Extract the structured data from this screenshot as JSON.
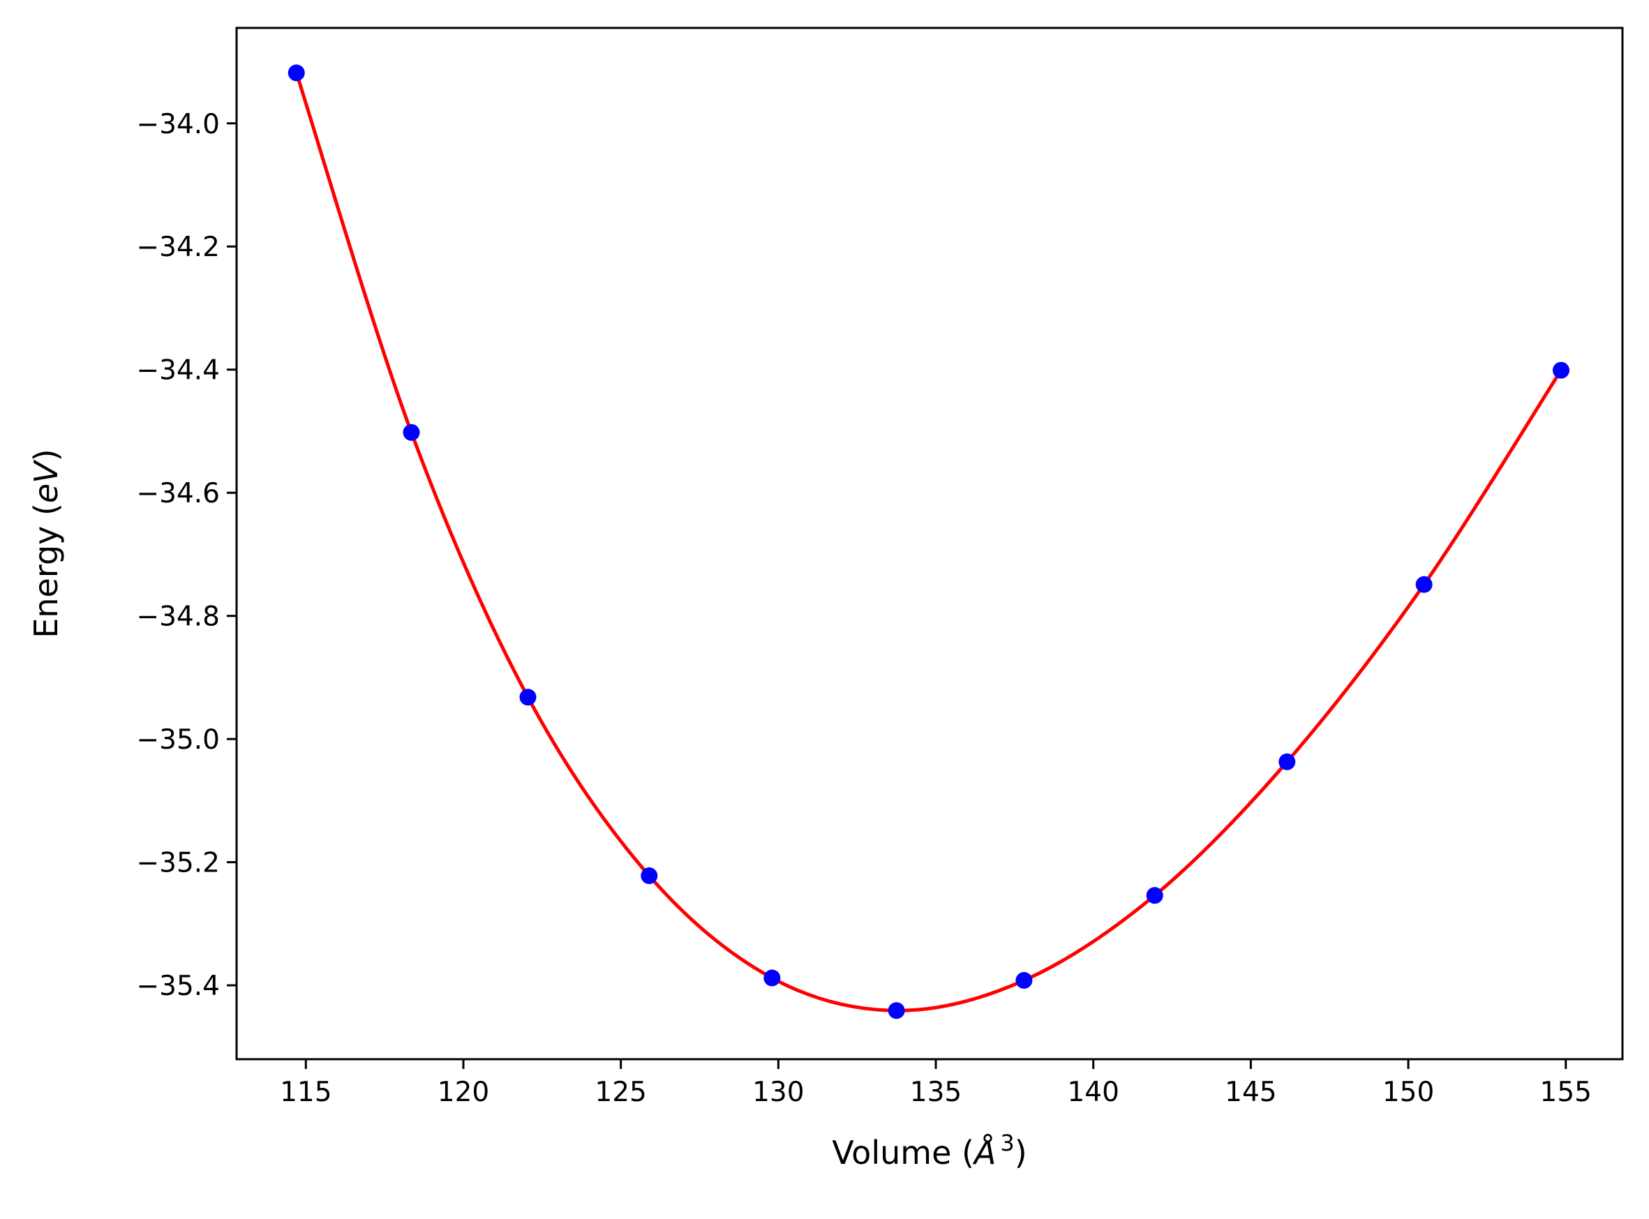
{
  "chart_data": {
    "type": "scatter",
    "title": "",
    "xlabel_text": "Volume (",
    "xlabel_symbol": "Å",
    "xlabel_exponent": "3",
    "xlabel_close": ")",
    "ylabel_text": "Energy (",
    "ylabel_symbol": "eV",
    "ylabel_close": ")",
    "xlim": [
      112.8,
      156.8
    ],
    "ylim": [
      -35.52,
      -33.845
    ],
    "x_ticks": [
      115,
      120,
      125,
      130,
      135,
      140,
      145,
      150,
      155
    ],
    "y_ticks": [
      -34.0,
      -34.2,
      -34.4,
      -34.6,
      -34.8,
      -35.0,
      -35.2,
      -35.4
    ],
    "x_tick_labels": [
      "115",
      "120",
      "125",
      "130",
      "135",
      "140",
      "145",
      "150",
      "155"
    ],
    "y_tick_labels": [
      "−34.0",
      "−34.2",
      "−34.4",
      "−34.6",
      "−34.8",
      "−35.0",
      "−35.2",
      "−35.4"
    ],
    "grid": false,
    "series": [
      {
        "type": "scatter",
        "color": "#0000ff",
        "x": [
          114.7,
          118.35,
          122.05,
          125.9,
          129.8,
          133.75,
          137.8,
          141.95,
          146.15,
          150.5,
          154.85
        ],
        "y": [
          -33.918,
          -34.502,
          -34.932,
          -35.222,
          -35.388,
          -35.441,
          -35.392,
          -35.254,
          -35.037,
          -34.749,
          -34.401
        ]
      },
      {
        "type": "line",
        "color": "#ff0000",
        "x": [
          114.7,
          118.35,
          122.05,
          125.9,
          129.8,
          133.75,
          137.8,
          141.95,
          146.15,
          150.5,
          154.85
        ],
        "y": [
          -33.918,
          -34.502,
          -34.932,
          -35.222,
          -35.388,
          -35.441,
          -35.392,
          -35.254,
          -35.037,
          -34.749,
          -34.401
        ]
      }
    ]
  }
}
